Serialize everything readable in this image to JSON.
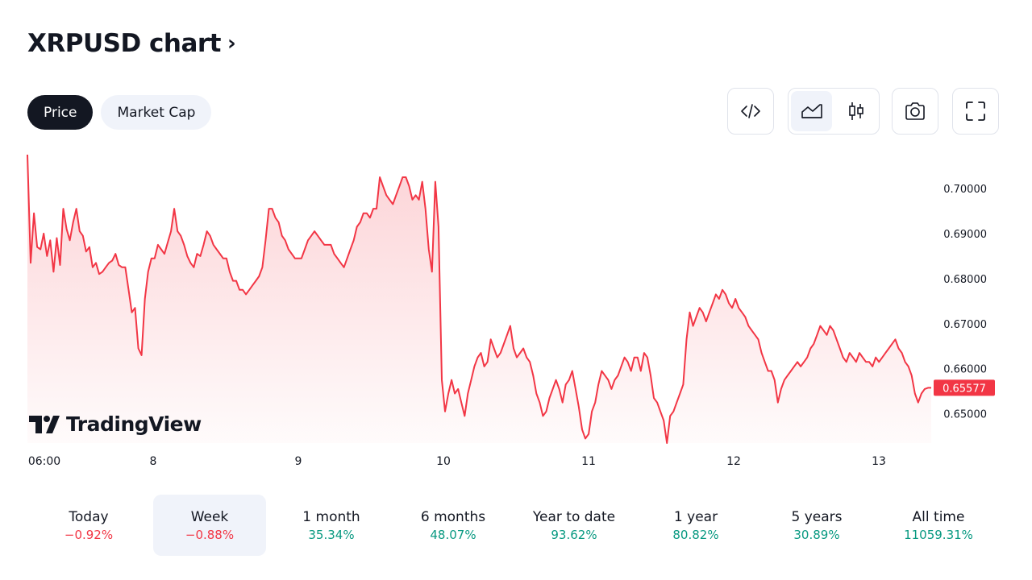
{
  "title": "XRPUSD chart",
  "title_chevron": "›",
  "tabs": [
    {
      "label": "Price",
      "active": true
    },
    {
      "label": "Market Cap",
      "active": false
    }
  ],
  "toolbar": {
    "embed_icon": "code-brackets-icon",
    "area_chart_icon": "area-chart-icon",
    "candles_icon": "candlestick-icon",
    "snapshot_icon": "camera-icon",
    "fullscreen_icon": "fullscreen-icon"
  },
  "watermark": "TradingView",
  "colors": {
    "line": "#f23645",
    "fill": "#f23645",
    "negative": "#f23645",
    "positive": "#089981",
    "label_bg": "#f23645"
  },
  "chart_data": {
    "type": "area",
    "symbol": "XRPUSD",
    "x_ticks": [
      "06:00",
      "8",
      "9",
      "10",
      "11",
      "12",
      "13"
    ],
    "y_ticks": [
      "0.70000",
      "0.69000",
      "0.68000",
      "0.67000",
      "0.66000",
      "0.65000"
    ],
    "ylim": [
      0.6435,
      0.7075
    ],
    "last_value": "0.65577",
    "grid": false,
    "values": [
      0.7075,
      0.6835,
      0.6945,
      0.687,
      0.6865,
      0.69,
      0.685,
      0.6885,
      0.6815,
      0.689,
      0.683,
      0.6955,
      0.691,
      0.6885,
      0.6925,
      0.6955,
      0.6905,
      0.6895,
      0.686,
      0.687,
      0.6825,
      0.6835,
      0.681,
      0.6815,
      0.6825,
      0.6835,
      0.684,
      0.6855,
      0.683,
      0.6825,
      0.6825,
      0.6775,
      0.6725,
      0.6735,
      0.6645,
      0.663,
      0.6755,
      0.6815,
      0.6845,
      0.6845,
      0.6875,
      0.6865,
      0.6855,
      0.688,
      0.6905,
      0.6955,
      0.6905,
      0.6895,
      0.6875,
      0.685,
      0.6835,
      0.6825,
      0.6855,
      0.685,
      0.6875,
      0.6905,
      0.6895,
      0.6875,
      0.6865,
      0.6855,
      0.6845,
      0.6845,
      0.6815,
      0.6795,
      0.6795,
      0.6775,
      0.6775,
      0.6765,
      0.6775,
      0.6785,
      0.6795,
      0.6805,
      0.6825,
      0.6885,
      0.6955,
      0.6955,
      0.6935,
      0.6925,
      0.6895,
      0.6885,
      0.6865,
      0.6855,
      0.6845,
      0.6845,
      0.6845,
      0.6865,
      0.6885,
      0.6895,
      0.6905,
      0.6895,
      0.6885,
      0.6875,
      0.6875,
      0.6875,
      0.6855,
      0.6845,
      0.6835,
      0.6825,
      0.6845,
      0.6865,
      0.6885,
      0.6915,
      0.6925,
      0.6945,
      0.6945,
      0.6935,
      0.6955,
      0.6955,
      0.7025,
      0.7005,
      0.6985,
      0.6975,
      0.6965,
      0.6985,
      0.7005,
      0.7025,
      0.7025,
      0.7005,
      0.6975,
      0.6985,
      0.6975,
      0.7015,
      0.6955,
      0.6865,
      0.6815,
      0.7015,
      0.6915,
      0.6575,
      0.6505,
      0.6545,
      0.6575,
      0.6545,
      0.6555,
      0.6525,
      0.6495,
      0.6545,
      0.6575,
      0.6605,
      0.6625,
      0.6635,
      0.6605,
      0.6615,
      0.6665,
      0.6645,
      0.6625,
      0.6635,
      0.6655,
      0.6675,
      0.6695,
      0.6645,
      0.6625,
      0.6635,
      0.6645,
      0.6625,
      0.6615,
      0.6585,
      0.6545,
      0.6525,
      0.6495,
      0.6505,
      0.6535,
      0.6555,
      0.6575,
      0.6555,
      0.6525,
      0.6565,
      0.6575,
      0.6595,
      0.6555,
      0.6515,
      0.6465,
      0.6445,
      0.6455,
      0.6505,
      0.6525,
      0.6565,
      0.6595,
      0.6585,
      0.6575,
      0.6555,
      0.6575,
      0.6585,
      0.6605,
      0.6625,
      0.6615,
      0.6595,
      0.6625,
      0.6625,
      0.6595,
      0.6635,
      0.6625,
      0.6585,
      0.6535,
      0.6525,
      0.6505,
      0.6485,
      0.6435,
      0.6495,
      0.6505,
      0.6525,
      0.6545,
      0.6565,
      0.6665,
      0.6725,
      0.6695,
      0.6715,
      0.6735,
      0.6725,
      0.6705,
      0.6725,
      0.6745,
      0.6765,
      0.6755,
      0.6775,
      0.6765,
      0.6745,
      0.6735,
      0.6755,
      0.6735,
      0.6725,
      0.6715,
      0.6695,
      0.6685,
      0.6675,
      0.6665,
      0.6635,
      0.6615,
      0.6595,
      0.6595,
      0.6575,
      0.6525,
      0.6555,
      0.6575,
      0.6585,
      0.6595,
      0.6605,
      0.6615,
      0.6605,
      0.6615,
      0.6625,
      0.6645,
      0.6655,
      0.6675,
      0.6695,
      0.6685,
      0.6675,
      0.6695,
      0.6685,
      0.6665,
      0.6645,
      0.6625,
      0.6615,
      0.6635,
      0.6625,
      0.6615,
      0.6635,
      0.6625,
      0.6615,
      0.6615,
      0.6605,
      0.6625,
      0.6615,
      0.6625,
      0.6635,
      0.6645,
      0.6655,
      0.6665,
      0.6645,
      0.6635,
      0.6615,
      0.6605,
      0.6585,
      0.6545,
      0.6525,
      0.6545,
      0.6555,
      0.65577,
      0.65577
    ]
  },
  "periods": [
    {
      "label": "Today",
      "value": "−0.92%",
      "trend": "neg",
      "active": false
    },
    {
      "label": "Week",
      "value": "−0.88%",
      "trend": "neg",
      "active": true
    },
    {
      "label": "1 month",
      "value": "35.34%",
      "trend": "pos",
      "active": false
    },
    {
      "label": "6 months",
      "value": "48.07%",
      "trend": "pos",
      "active": false
    },
    {
      "label": "Year to date",
      "value": "93.62%",
      "trend": "pos",
      "active": false
    },
    {
      "label": "1 year",
      "value": "80.82%",
      "trend": "pos",
      "active": false
    },
    {
      "label": "5 years",
      "value": "30.89%",
      "trend": "pos",
      "active": false
    },
    {
      "label": "All time",
      "value": "11059.31%",
      "trend": "pos",
      "active": false
    }
  ]
}
